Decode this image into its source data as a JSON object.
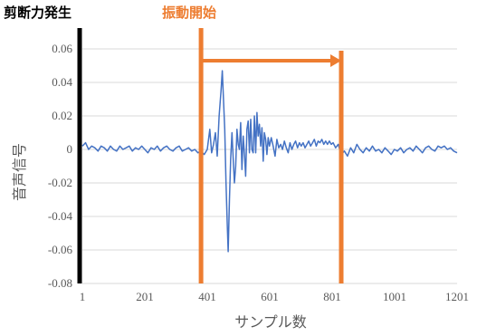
{
  "chart_data": {
    "type": "line",
    "title": "",
    "xlabel": "サンプル数",
    "ylabel": "音声信号",
    "xlim": [
      1,
      1201
    ],
    "ylim": [
      -0.08,
      0.06
    ],
    "x_ticks": [
      "1",
      "201",
      "401",
      "601",
      "801",
      "1001",
      "1201"
    ],
    "y_ticks": [
      "0.06",
      "0.04",
      "0.02",
      "0",
      "-0.02",
      "-0.04",
      "-0.06",
      "-0.08"
    ],
    "grid": true,
    "series": [
      {
        "color": "#4472c4",
        "points": [
          [
            1,
            0.002
          ],
          [
            11,
            0.004
          ],
          [
            21,
            0.0
          ],
          [
            31,
            0.002
          ],
          [
            41,
            0.001
          ],
          [
            51,
            -0.001
          ],
          [
            61,
            0.002
          ],
          [
            71,
            0.001
          ],
          [
            81,
            -0.001
          ],
          [
            91,
            0.002
          ],
          [
            101,
            0.0
          ],
          [
            111,
            -0.001
          ],
          [
            121,
            0.002
          ],
          [
            131,
            0.0
          ],
          [
            141,
            0.001
          ],
          [
            151,
            0.002
          ],
          [
            161,
            -0.001
          ],
          [
            171,
            0.001
          ],
          [
            181,
            0.0
          ],
          [
            191,
            0.002
          ],
          [
            201,
            0.0
          ],
          [
            211,
            -0.002
          ],
          [
            221,
            0.001
          ],
          [
            231,
            0.0
          ],
          [
            241,
            0.002
          ],
          [
            251,
            -0.001
          ],
          [
            261,
            0.001
          ],
          [
            271,
            0.002
          ],
          [
            281,
            0.0
          ],
          [
            291,
            -0.001
          ],
          [
            301,
            0.001
          ],
          [
            311,
            0.002
          ],
          [
            321,
            -0.001
          ],
          [
            331,
            0.0
          ],
          [
            341,
            0.001
          ],
          [
            351,
            -0.001
          ],
          [
            361,
            0.0
          ],
          [
            371,
            -0.002
          ],
          [
            381,
            -0.001
          ],
          [
            391,
            -0.003
          ],
          [
            401,
            0.0
          ],
          [
            409,
            0.012
          ],
          [
            415,
            -0.002
          ],
          [
            421,
            0.003
          ],
          [
            427,
            0.01
          ],
          [
            433,
            -0.004
          ],
          [
            439,
            0.02
          ],
          [
            445,
            0.035
          ],
          [
            449,
            0.047
          ],
          [
            453,
            0.03
          ],
          [
            457,
            0.012
          ],
          [
            461,
            -0.02
          ],
          [
            465,
            -0.045
          ],
          [
            468,
            -0.061
          ],
          [
            472,
            -0.03
          ],
          [
            476,
            -0.005
          ],
          [
            480,
            0.01
          ],
          [
            484,
            -0.005
          ],
          [
            488,
            -0.02
          ],
          [
            492,
            -0.01
          ],
          [
            496,
            0.012
          ],
          [
            500,
            0.003
          ],
          [
            504,
            0.0
          ],
          [
            508,
            0.016
          ],
          [
            512,
            -0.012
          ],
          [
            516,
            0.008
          ],
          [
            520,
            -0.003
          ],
          [
            524,
            -0.016
          ],
          [
            528,
            0.012
          ],
          [
            532,
            0.017
          ],
          [
            536,
            -0.002
          ],
          [
            540,
            0.018
          ],
          [
            544,
            0.0
          ],
          [
            548,
            -0.002
          ],
          [
            552,
            0.02
          ],
          [
            556,
            -0.002
          ],
          [
            560,
            0.022
          ],
          [
            564,
            0.008
          ],
          [
            568,
            0.015
          ],
          [
            572,
            0.002
          ],
          [
            576,
            0.013
          ],
          [
            580,
            -0.007
          ],
          [
            584,
            0.01
          ],
          [
            588,
            0.006
          ],
          [
            592,
            -0.003
          ],
          [
            596,
            0.007
          ],
          [
            600,
            0.002
          ],
          [
            606,
            0.007
          ],
          [
            612,
            0.002
          ],
          [
            618,
            -0.004
          ],
          [
            624,
            0.006
          ],
          [
            630,
            0.001
          ],
          [
            636,
            0.003
          ],
          [
            642,
            0.0
          ],
          [
            648,
            0.005
          ],
          [
            654,
            0.001
          ],
          [
            660,
            -0.002
          ],
          [
            666,
            0.004
          ],
          [
            672,
            0.0
          ],
          [
            678,
            0.003
          ],
          [
            684,
            0.005
          ],
          [
            690,
            0.001
          ],
          [
            696,
            0.004
          ],
          [
            702,
            0.002
          ],
          [
            708,
            0.004
          ],
          [
            714,
            0.001
          ],
          [
            720,
            0.003
          ],
          [
            726,
            0.005
          ],
          [
            732,
            0.002
          ],
          [
            738,
            0.004
          ],
          [
            744,
            0.006
          ],
          [
            750,
            0.002
          ],
          [
            756,
            0.005
          ],
          [
            762,
            0.004
          ],
          [
            768,
            0.006
          ],
          [
            774,
            0.003
          ],
          [
            780,
            0.005
          ],
          [
            786,
            0.003
          ],
          [
            792,
            0.005
          ],
          [
            798,
            0.003
          ],
          [
            804,
            0.004
          ],
          [
            812,
            0.001
          ],
          [
            820,
            0.003
          ],
          [
            830,
            -0.003
          ],
          [
            840,
            -0.001
          ],
          [
            850,
            -0.004
          ],
          [
            860,
            0.001
          ],
          [
            870,
            -0.002
          ],
          [
            880,
            0.003
          ],
          [
            890,
            0.0
          ],
          [
            900,
            -0.002
          ],
          [
            910,
            0.001
          ],
          [
            920,
            -0.001
          ],
          [
            930,
            0.002
          ],
          [
            940,
            -0.001
          ],
          [
            950,
            0.0
          ],
          [
            960,
            -0.002
          ],
          [
            970,
            0.001
          ],
          [
            980,
            -0.001
          ],
          [
            990,
            -0.003
          ],
          [
            1000,
            0.0
          ],
          [
            1010,
            -0.001
          ],
          [
            1020,
            0.001
          ],
          [
            1030,
            -0.002
          ],
          [
            1040,
            0.0
          ],
          [
            1050,
            0.001
          ],
          [
            1060,
            -0.001
          ],
          [
            1070,
            0.002
          ],
          [
            1080,
            0.0
          ],
          [
            1090,
            -0.002
          ],
          [
            1100,
            0.001
          ],
          [
            1110,
            0.002
          ],
          [
            1120,
            0.0
          ],
          [
            1130,
            -0.001
          ],
          [
            1140,
            0.002
          ],
          [
            1150,
            0.001
          ],
          [
            1160,
            0.002
          ],
          [
            1170,
            0.0
          ],
          [
            1180,
            0.001
          ],
          [
            1190,
            -0.001
          ],
          [
            1201,
            -0.002
          ]
        ]
      }
    ],
    "annotations": {
      "shear_label": "剪断力発生",
      "vibration_label": "振動開始",
      "shear_x": 1,
      "vibration_start_x": 381,
      "vibration_end_x": 830,
      "arrow_y": 0.053,
      "orange": "#ed7d31",
      "black": "#000000"
    }
  }
}
